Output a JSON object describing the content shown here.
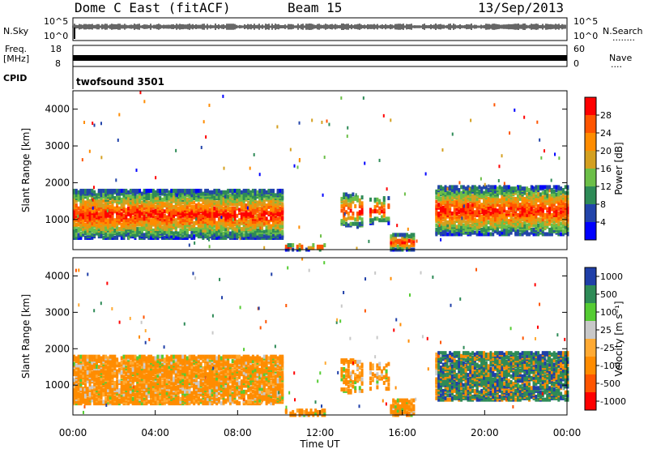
{
  "header": {
    "radar_title": "Dome C East (fitACF)",
    "beam": "Beam 15",
    "date": "13/Sep/2013"
  },
  "side_labels": {
    "nsky": "N.Sky",
    "freq_line1": "Freq.",
    "freq_line2": "[MHz]",
    "cpid": "CPID",
    "nsearch": "N.Search",
    "nsearch_dots": "........",
    "nave": "Nave",
    "nave_dots": "...."
  },
  "small_axes": {
    "noise_left_top": "10^5",
    "noise_left_bottom": "10^0",
    "noise_right_top": "10^5",
    "noise_right_bottom": "10^0",
    "freq_left_top": "18",
    "freq_left_bottom": "8",
    "nave_right_top": "60",
    "nave_right_bottom": "0"
  },
  "cpid_text": "twofsound 3501",
  "colors": {
    "power": [
      "#0000ff",
      "#2244aa",
      "#2e8b57",
      "#6cbf48",
      "#d4a020",
      "#ff8c00",
      "#ff5500",
      "#ff0000"
    ],
    "velocity": [
      "#ff0000",
      "#ff5500",
      "#ff8c00",
      "#ffaa33",
      "#c8c8c8",
      "#55cc33",
      "#2e8b57",
      "#1f3fa8"
    ]
  },
  "chart_data": [
    {
      "type": "heatmap",
      "name": "power",
      "ylabel": "Slant Range [km]",
      "yticks": [
        "1000",
        "2000",
        "3000",
        "4000"
      ],
      "ylim": [
        180,
        4500
      ],
      "xlim": [
        0,
        24
      ],
      "colorbar_label": "Power [dB]",
      "colorbar_ticks": [
        "4",
        "8",
        "12",
        "16",
        "20",
        "24",
        "28"
      ],
      "colorbar_range": [
        0,
        32
      ]
    },
    {
      "type": "heatmap",
      "name": "velocity",
      "ylabel": "Slant Range [km]",
      "yticks": [
        "1000",
        "2000",
        "3000",
        "4000"
      ],
      "ylim": [
        180,
        4500
      ],
      "xlim": [
        0,
        24
      ],
      "xticks": [
        "00:00",
        "04:00",
        "08:00",
        "12:00",
        "16:00",
        "20:00",
        "00:00"
      ],
      "xlabel": "Time UT",
      "colorbar_label": "Velocity [m s⁻¹]",
      "colorbar_ticks": [
        "-1000",
        "-500",
        "-100",
        "-25",
        "25",
        "100",
        "500",
        "1000"
      ]
    }
  ]
}
